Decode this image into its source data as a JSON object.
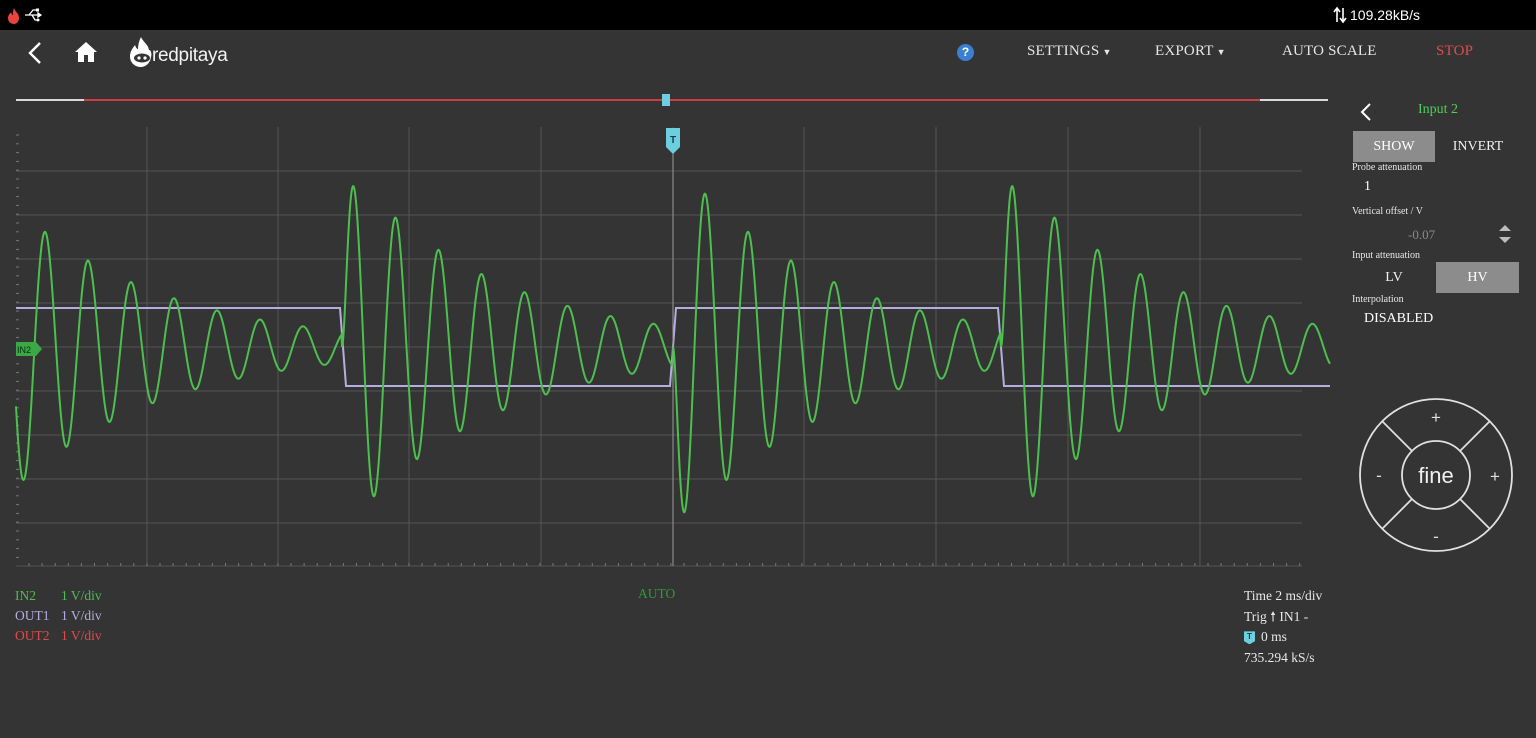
{
  "statusbar": {
    "transfer_rate": "109.28kB/s"
  },
  "header": {
    "logo_text": "redpitaya",
    "help_label": "?",
    "settings_label": "SETTINGS",
    "export_label": "EXPORT",
    "autoscale_label": "AUTO SCALE",
    "stop_label": "STOP"
  },
  "scope": {
    "trigger_marker": "T",
    "in2_marker": "IN2",
    "trigger_mode": "AUTO"
  },
  "channels": [
    {
      "name": "IN2",
      "scale": "1 V/div",
      "color": "#4cbf4f"
    },
    {
      "name": "OUT1",
      "scale": "1 V/div",
      "color": "#b4aee0"
    },
    {
      "name": "OUT2",
      "scale": "1 V/div",
      "color": "#e24a4a"
    }
  ],
  "acquisition": {
    "time_label": "Time",
    "time_value": "2 ms/div",
    "trig_label": "Trig",
    "trig_source": "IN1 -",
    "trig_offset": "0 ms",
    "sample_rate": "735.294  kS/s"
  },
  "panel": {
    "title": "Input 2",
    "show_label": "SHOW",
    "invert_label": "INVERT",
    "probe_label": "Probe  attenuation",
    "probe_value": "1",
    "offset_label": "Vertical  offset  / V",
    "offset_value": "-0.07",
    "input_att_label": "Input attenuation",
    "lv_label": "LV",
    "hv_label": "HV",
    "interp_label": "Interpolation",
    "interp_value": "DISABLED",
    "dpad": {
      "center": "fine",
      "up": "+",
      "down": "-",
      "left": "-",
      "right": "+"
    }
  },
  "colors": {
    "in2": "#4cbf4f",
    "out1": "#b4aee0",
    "out2": "#e24a4a",
    "trigger": "#6ccfe0",
    "stop": "#e24a4a"
  }
}
